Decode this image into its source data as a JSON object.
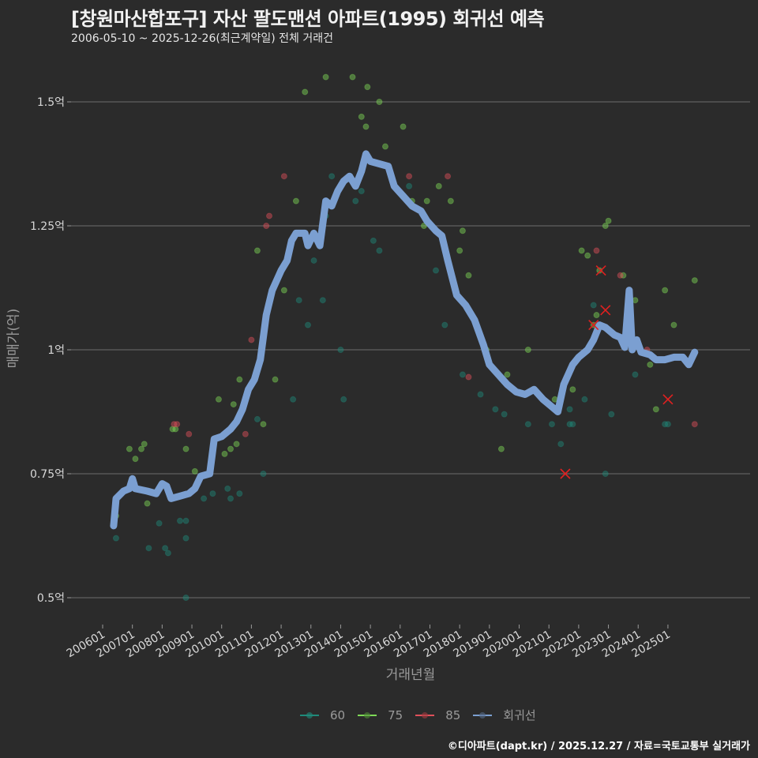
{
  "header": {
    "title": "[창원마산합포구] 자산 팔도맨션 아파트(1995) 회귀선 예측",
    "subtitle": "2006-05-10 ~ 2025-12-26(최근계약일) 전체 거래건"
  },
  "axes": {
    "ylabel": "매매가(억)",
    "xlabel": "거래년월"
  },
  "legend": {
    "items": [
      {
        "label": "60",
        "color": "#1f8a7a"
      },
      {
        "label": "75",
        "color": "#7ed957"
      },
      {
        "label": "85",
        "color": "#e0505a"
      },
      {
        "label": "회귀선",
        "color": "#7b9fd1"
      }
    ]
  },
  "caption": "©디아파트(dapt.kr) / 2025.12.27 / 자료=국토교통부 실거래가",
  "colors": {
    "background": "#2b2b2b",
    "grid": "#6e6e6e",
    "regression": "#7b9fd1",
    "s60": "#1f8a7a",
    "s75": "#7ed957",
    "s85": "#e0505a",
    "cancel_mark": "#e02020"
  },
  "chart_data": {
    "type": "scatter",
    "title": "[창원마산합포구] 자산 팔도맨션 아파트(1995) 회귀선 예측",
    "subtitle": "2006-05-10 ~ 2025-12-26(최근계약일) 전체 거래건",
    "xlabel": "거래년월",
    "ylabel": "매매가(억)",
    "x_ticks": [
      "200601",
      "200701",
      "200801",
      "200901",
      "201001",
      "201101",
      "201201",
      "201301",
      "201401",
      "201501",
      "201601",
      "201701",
      "201801",
      "201901",
      "202001",
      "202101",
      "202201",
      "202301",
      "202401",
      "202501"
    ],
    "y_ticks": [
      0.5,
      0.75,
      1.0,
      1.25,
      1.5
    ],
    "y_tick_labels": [
      "0.5억",
      "0.75억",
      "1억",
      "1.25억",
      "1.5억"
    ],
    "ylim": [
      0.45,
      1.58
    ],
    "grid": true,
    "legend_position": "bottom",
    "regression_line": {
      "name": "회귀선",
      "points": [
        [
          2006.37,
          0.645
        ],
        [
          2006.45,
          0.7
        ],
        [
          2006.7,
          0.715
        ],
        [
          2006.9,
          0.72
        ],
        [
          2007.0,
          0.74
        ],
        [
          2007.1,
          0.72
        ],
        [
          2007.5,
          0.715
        ],
        [
          2007.8,
          0.71
        ],
        [
          2008.0,
          0.73
        ],
        [
          2008.15,
          0.725
        ],
        [
          2008.3,
          0.7
        ],
        [
          2008.6,
          0.705
        ],
        [
          2008.9,
          0.71
        ],
        [
          2009.1,
          0.72
        ],
        [
          2009.3,
          0.745
        ],
        [
          2009.6,
          0.75
        ],
        [
          2009.75,
          0.82
        ],
        [
          2010.0,
          0.825
        ],
        [
          2010.3,
          0.84
        ],
        [
          2010.5,
          0.855
        ],
        [
          2010.7,
          0.88
        ],
        [
          2010.9,
          0.92
        ],
        [
          2011.1,
          0.94
        ],
        [
          2011.3,
          0.98
        ],
        [
          2011.5,
          1.07
        ],
        [
          2011.7,
          1.12
        ],
        [
          2012.0,
          1.16
        ],
        [
          2012.2,
          1.18
        ],
        [
          2012.35,
          1.22
        ],
        [
          2012.5,
          1.235
        ],
        [
          2012.8,
          1.235
        ],
        [
          2012.9,
          1.21
        ],
        [
          2013.1,
          1.235
        ],
        [
          2013.3,
          1.21
        ],
        [
          2013.5,
          1.3
        ],
        [
          2013.7,
          1.29
        ],
        [
          2013.9,
          1.32
        ],
        [
          2014.1,
          1.34
        ],
        [
          2014.3,
          1.35
        ],
        [
          2014.5,
          1.33
        ],
        [
          2014.7,
          1.36
        ],
        [
          2014.85,
          1.395
        ],
        [
          2015.0,
          1.38
        ],
        [
          2015.3,
          1.375
        ],
        [
          2015.6,
          1.37
        ],
        [
          2015.8,
          1.33
        ],
        [
          2016.1,
          1.31
        ],
        [
          2016.4,
          1.29
        ],
        [
          2016.7,
          1.28
        ],
        [
          2016.9,
          1.26
        ],
        [
          2017.2,
          1.24
        ],
        [
          2017.4,
          1.23
        ],
        [
          2017.6,
          1.18
        ],
        [
          2017.9,
          1.11
        ],
        [
          2018.2,
          1.09
        ],
        [
          2018.5,
          1.06
        ],
        [
          2018.8,
          1.01
        ],
        [
          2019.0,
          0.97
        ],
        [
          2019.3,
          0.95
        ],
        [
          2019.6,
          0.93
        ],
        [
          2019.9,
          0.915
        ],
        [
          2020.2,
          0.91
        ],
        [
          2020.5,
          0.92
        ],
        [
          2020.8,
          0.9
        ],
        [
          2021.1,
          0.885
        ],
        [
          2021.3,
          0.875
        ],
        [
          2021.5,
          0.93
        ],
        [
          2021.8,
          0.97
        ],
        [
          2022.0,
          0.985
        ],
        [
          2022.3,
          1.0
        ],
        [
          2022.5,
          1.02
        ],
        [
          2022.7,
          1.05
        ],
        [
          2022.9,
          1.045
        ],
        [
          2023.2,
          1.03
        ],
        [
          2023.4,
          1.025
        ],
        [
          2023.55,
          1.005
        ],
        [
          2023.7,
          1.12
        ],
        [
          2023.8,
          1.0
        ],
        [
          2023.95,
          1.02
        ],
        [
          2024.1,
          0.995
        ],
        [
          2024.4,
          0.99
        ],
        [
          2024.6,
          0.98
        ],
        [
          2024.9,
          0.98
        ],
        [
          2025.2,
          0.985
        ],
        [
          2025.5,
          0.985
        ],
        [
          2025.7,
          0.97
        ],
        [
          2025.9,
          0.995
        ]
      ]
    },
    "series": [
      {
        "name": "60",
        "points": [
          [
            2006.45,
            0.62
          ],
          [
            2007.55,
            0.6
          ],
          [
            2007.9,
            0.65
          ],
          [
            2008.1,
            0.6
          ],
          [
            2008.2,
            0.59
          ],
          [
            2008.6,
            0.655
          ],
          [
            2008.8,
            0.655
          ],
          [
            2008.8,
            0.62
          ],
          [
            2008.8,
            0.5
          ],
          [
            2009.4,
            0.7
          ],
          [
            2009.7,
            0.71
          ],
          [
            2010.2,
            0.72
          ],
          [
            2010.3,
            0.7
          ],
          [
            2010.6,
            0.71
          ],
          [
            2011.2,
            0.86
          ],
          [
            2011.4,
            0.75
          ],
          [
            2012.4,
            0.9
          ],
          [
            2012.6,
            1.1
          ],
          [
            2012.9,
            1.05
          ],
          [
            2013.1,
            1.18
          ],
          [
            2013.4,
            1.1
          ],
          [
            2013.5,
            1.27
          ],
          [
            2013.7,
            1.35
          ],
          [
            2014.0,
            1.0
          ],
          [
            2014.1,
            0.9
          ],
          [
            2014.5,
            1.3
          ],
          [
            2014.7,
            1.32
          ],
          [
            2015.1,
            1.22
          ],
          [
            2015.3,
            1.2
          ],
          [
            2016.3,
            1.33
          ],
          [
            2017.2,
            1.16
          ],
          [
            2017.5,
            1.05
          ],
          [
            2018.1,
            0.95
          ],
          [
            2018.7,
            0.91
          ],
          [
            2019.2,
            0.88
          ],
          [
            2019.5,
            0.87
          ],
          [
            2020.3,
            0.85
          ],
          [
            2021.1,
            0.85
          ],
          [
            2021.4,
            0.81
          ],
          [
            2021.7,
            0.85
          ],
          [
            2021.7,
            0.88
          ],
          [
            2021.8,
            0.85
          ],
          [
            2022.2,
            0.9
          ],
          [
            2022.5,
            1.09
          ],
          [
            2022.9,
            0.75
          ],
          [
            2023.1,
            0.87
          ],
          [
            2023.9,
            0.95
          ],
          [
            2024.9,
            0.85
          ],
          [
            2025.0,
            0.85
          ]
        ]
      },
      {
        "name": "75",
        "points": [
          [
            2006.45,
            0.665
          ],
          [
            2006.9,
            0.8
          ],
          [
            2007.1,
            0.78
          ],
          [
            2007.3,
            0.8
          ],
          [
            2007.4,
            0.81
          ],
          [
            2007.5,
            0.69
          ],
          [
            2008.35,
            0.84
          ],
          [
            2008.45,
            0.84
          ],
          [
            2008.8,
            0.8
          ],
          [
            2009.1,
            0.755
          ],
          [
            2009.9,
            0.9
          ],
          [
            2010.1,
            0.79
          ],
          [
            2010.3,
            0.8
          ],
          [
            2010.4,
            0.89
          ],
          [
            2010.5,
            0.81
          ],
          [
            2010.6,
            0.94
          ],
          [
            2010.7,
            0.88
          ],
          [
            2011.2,
            1.2
          ],
          [
            2011.4,
            0.85
          ],
          [
            2011.8,
            0.94
          ],
          [
            2012.1,
            1.12
          ],
          [
            2012.5,
            1.3
          ],
          [
            2012.8,
            1.52
          ],
          [
            2013.5,
            1.55
          ],
          [
            2014.4,
            1.55
          ],
          [
            2014.9,
            1.53
          ],
          [
            2015.3,
            1.5
          ],
          [
            2014.7,
            1.47
          ],
          [
            2014.85,
            1.45
          ],
          [
            2015.5,
            1.41
          ],
          [
            2016.1,
            1.45
          ],
          [
            2016.4,
            1.3
          ],
          [
            2016.8,
            1.25
          ],
          [
            2016.9,
            1.3
          ],
          [
            2017.3,
            1.33
          ],
          [
            2017.7,
            1.3
          ],
          [
            2018.0,
            1.2
          ],
          [
            2018.1,
            1.24
          ],
          [
            2018.3,
            1.15
          ],
          [
            2018.9,
            1.0
          ],
          [
            2019.4,
            0.8
          ],
          [
            2019.6,
            0.95
          ],
          [
            2020.3,
            1.0
          ],
          [
            2021.2,
            0.9
          ],
          [
            2021.8,
            0.92
          ],
          [
            2022.1,
            1.2
          ],
          [
            2022.3,
            1.19
          ],
          [
            2022.5,
            1.05
          ],
          [
            2022.6,
            1.07
          ],
          [
            2022.7,
            1.16
          ],
          [
            2022.9,
            1.25
          ],
          [
            2023.0,
            1.26
          ],
          [
            2023.5,
            1.15
          ],
          [
            2023.9,
            1.1
          ],
          [
            2024.4,
            0.97
          ],
          [
            2024.6,
            0.88
          ],
          [
            2024.9,
            1.12
          ],
          [
            2025.2,
            1.05
          ],
          [
            2025.9,
            1.14
          ]
        ]
      },
      {
        "name": "85",
        "points": [
          [
            2008.4,
            0.85
          ],
          [
            2008.5,
            0.85
          ],
          [
            2008.9,
            0.83
          ],
          [
            2010.8,
            0.83
          ],
          [
            2011.0,
            1.02
          ],
          [
            2011.5,
            1.25
          ],
          [
            2011.6,
            1.27
          ],
          [
            2012.1,
            1.35
          ],
          [
            2016.3,
            1.35
          ],
          [
            2017.6,
            1.35
          ],
          [
            2018.3,
            0.945
          ],
          [
            2022.6,
            1.2
          ],
          [
            2023.4,
            1.15
          ],
          [
            2024.3,
            1.0
          ],
          [
            2025.9,
            0.85
          ]
        ]
      }
    ],
    "cancelled_marks": [
      [
        2021.55,
        0.75
      ],
      [
        2022.5,
        1.05
      ],
      [
        2022.75,
        1.16
      ],
      [
        2022.9,
        1.08
      ],
      [
        2025.0,
        0.9
      ]
    ]
  }
}
